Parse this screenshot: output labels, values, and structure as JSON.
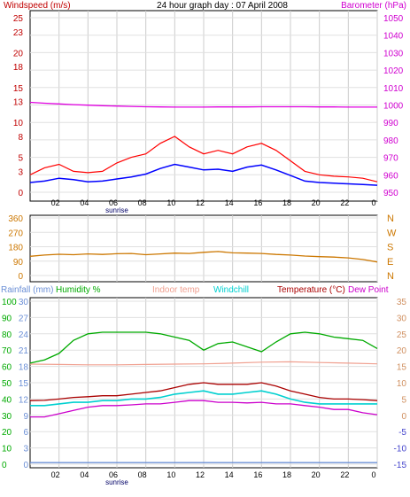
{
  "chart_data": [
    {
      "type": "line",
      "title": "24 hour graph day : 07 April 2008",
      "y_left_label": "Windspeed (m/s)",
      "y_right_label": "Barometer (hPa)",
      "x_ticks": [
        "02",
        "04",
        "06",
        "08",
        "10",
        "12",
        "14",
        "16",
        "18",
        "20",
        "22",
        "0"
      ],
      "sunrise_label": "sunrise",
      "y_left_ticks": [
        0,
        3,
        5,
        8,
        10,
        13,
        15,
        18,
        20,
        23,
        25
      ],
      "y_right_ticks": [
        950,
        960,
        970,
        980,
        990,
        1000,
        1010,
        1020,
        1030,
        1040,
        1050
      ],
      "ylim_left": [
        0,
        25
      ],
      "ylim_right": [
        950,
        1050
      ],
      "colors": {
        "title_left": "#c00000",
        "title_right": "#d000d0",
        "gust": "#ff0000",
        "average": "#0000ff",
        "barometer": "#e000e0"
      },
      "series": [
        {
          "name": "Windspeed (m/s)",
          "axis": "left",
          "color": "#0000ff",
          "x": [
            0,
            1,
            2,
            3,
            4,
            5,
            6,
            7,
            8,
            9,
            10,
            11,
            12,
            13,
            14,
            15,
            16,
            17,
            18,
            19,
            20,
            21,
            22,
            23,
            24
          ],
          "values": [
            1.4,
            1.6,
            2.0,
            1.8,
            1.5,
            1.6,
            1.9,
            2.2,
            2.6,
            3.4,
            4.0,
            3.6,
            3.2,
            3.3,
            3.0,
            3.6,
            3.9,
            3.2,
            2.4,
            1.6,
            1.4,
            1.3,
            1.2,
            1.1,
            1.0
          ]
        },
        {
          "name": "gust",
          "axis": "left",
          "color": "#ff0000",
          "x": [
            0,
            1,
            2,
            3,
            4,
            5,
            6,
            7,
            8,
            9,
            10,
            11,
            12,
            13,
            14,
            15,
            16,
            17,
            18,
            19,
            20,
            21,
            22,
            23,
            24
          ],
          "values": [
            2.5,
            3.5,
            4.0,
            3.0,
            2.8,
            3.0,
            4.2,
            5.0,
            5.5,
            7.0,
            8.0,
            6.5,
            5.5,
            6.0,
            5.5,
            6.5,
            7.0,
            6.0,
            4.5,
            3.0,
            2.5,
            2.3,
            2.2,
            2.0,
            1.5
          ]
        },
        {
          "name": "Barometer (hPa)",
          "axis": "right",
          "color": "#e000e0",
          "x": [
            0,
            1,
            2,
            3,
            4,
            5,
            6,
            7,
            8,
            9,
            10,
            11,
            12,
            13,
            14,
            15,
            16,
            17,
            18,
            19,
            20,
            21,
            22,
            23,
            24
          ],
          "values": [
            1001.5,
            1001.0,
            1000.6,
            1000.2,
            999.9,
            999.6,
            999.4,
            999.2,
            999.0,
            998.9,
            998.8,
            998.8,
            998.8,
            998.9,
            998.9,
            998.9,
            999.0,
            999.0,
            999.0,
            999.0,
            998.9,
            998.9,
            998.8,
            998.8,
            998.8
          ]
        }
      ]
    },
    {
      "type": "line",
      "title": "",
      "y_left_ticks": [
        0,
        90,
        180,
        270,
        360
      ],
      "y_right_ticks": [
        "N",
        "W",
        "S",
        "E",
        "N"
      ],
      "ylim": [
        0,
        360
      ],
      "x_ticks": [
        "02",
        "04",
        "06",
        "08",
        "10",
        "12",
        "14",
        "16",
        "18",
        "20",
        "22",
        "0"
      ],
      "colors": {
        "direction": "#cc7700"
      },
      "series": [
        {
          "name": "Wind direction",
          "color": "#cc7700",
          "x": [
            0,
            1,
            2,
            3,
            4,
            5,
            6,
            7,
            8,
            9,
            10,
            11,
            12,
            13,
            14,
            15,
            16,
            17,
            18,
            19,
            20,
            21,
            22,
            23,
            24
          ],
          "values": [
            120,
            128,
            133,
            130,
            135,
            132,
            136,
            138,
            130,
            135,
            140,
            138,
            145,
            150,
            142,
            140,
            138,
            132,
            128,
            122,
            118,
            115,
            110,
            100,
            85
          ]
        }
      ]
    },
    {
      "type": "line",
      "title": "",
      "legend": [
        "Rainfall (mm)",
        "Humidity %",
        "Indoor temp",
        "Windchill",
        "Temperature (°C)",
        "Dew Point"
      ],
      "colors": {
        "rainfall": "#6b8fd6",
        "humidity": "#00aa00",
        "indoor": "#f0a090",
        "windchill": "#00d0d0",
        "temperature": "#aa0000",
        "dewpoint": "#cc00cc",
        "right_axis": "#d09060",
        "neg_axis": "#4444cc"
      },
      "y_rain_ticks": [
        0,
        3,
        6,
        9,
        12,
        15,
        18,
        21,
        24,
        27,
        30
      ],
      "y_hum_ticks": [
        0,
        10,
        20,
        30,
        40,
        50,
        60,
        70,
        80,
        90,
        100
      ],
      "y_temp_ticks": [
        -15,
        -10,
        -5,
        0,
        5,
        10,
        15,
        20,
        25,
        30,
        35
      ],
      "ylim_temp": [
        -15,
        35
      ],
      "ylim_humidity": [
        0,
        100
      ],
      "ylim_rain": [
        0,
        30
      ],
      "x_ticks": [
        "02",
        "04",
        "06",
        "08",
        "10",
        "12",
        "14",
        "16",
        "18",
        "20",
        "22",
        "0"
      ],
      "sunrise_label": "sunrise",
      "series": [
        {
          "name": "Humidity %",
          "axis": "humidity",
          "color": "#00aa00",
          "x": [
            0,
            1,
            2,
            3,
            4,
            5,
            6,
            7,
            8,
            9,
            10,
            11,
            12,
            13,
            14,
            15,
            16,
            17,
            18,
            19,
            20,
            21,
            22,
            23,
            24
          ],
          "values": [
            62,
            64,
            68,
            76,
            80,
            81,
            81,
            81,
            81,
            80,
            78,
            76,
            70,
            74,
            75,
            72,
            69,
            75,
            80,
            81,
            80,
            78,
            77,
            76,
            71
          ]
        },
        {
          "name": "Indoor temp",
          "axis": "temp",
          "color": "#f0a090",
          "x": [
            0,
            2,
            4,
            6,
            8,
            10,
            12,
            14,
            16,
            18,
            20,
            22,
            24
          ],
          "values": [
            15.7,
            15.6,
            15.5,
            15.5,
            15.6,
            15.7,
            15.8,
            16.0,
            16.3,
            16.4,
            16.2,
            16.0,
            15.8
          ]
        },
        {
          "name": "Windchill",
          "axis": "temp",
          "color": "#00d0d0",
          "x": [
            0,
            1,
            2,
            3,
            4,
            5,
            6,
            7,
            8,
            9,
            10,
            11,
            12,
            13,
            14,
            15,
            16,
            17,
            18,
            19,
            20,
            21,
            22,
            23,
            24
          ],
          "values": [
            3.0,
            3.0,
            3.5,
            4.0,
            4.0,
            4.5,
            4.5,
            5.0,
            5.0,
            5.5,
            6.5,
            7.0,
            7.5,
            6.5,
            6.5,
            7.0,
            7.5,
            6.5,
            5.0,
            4.0,
            3.5,
            3.5,
            3.5,
            3.5,
            3.5
          ]
        },
        {
          "name": "Temperature (°C)",
          "axis": "temp",
          "color": "#aa0000",
          "x": [
            0,
            1,
            2,
            3,
            4,
            5,
            6,
            7,
            8,
            9,
            10,
            11,
            12,
            13,
            14,
            15,
            16,
            17,
            18,
            19,
            20,
            21,
            22,
            23,
            24
          ],
          "values": [
            4.5,
            4.6,
            5.0,
            5.5,
            5.7,
            6.0,
            6.0,
            6.5,
            7.0,
            7.5,
            8.5,
            9.5,
            10.0,
            9.5,
            9.5,
            9.5,
            10.0,
            9.0,
            7.5,
            6.5,
            5.5,
            5.0,
            5.0,
            4.8,
            4.5
          ]
        },
        {
          "name": "Dew Point",
          "axis": "temp",
          "color": "#cc00cc",
          "x": [
            0,
            1,
            2,
            3,
            4,
            5,
            6,
            7,
            8,
            9,
            10,
            11,
            12,
            13,
            14,
            15,
            16,
            17,
            18,
            19,
            20,
            21,
            22,
            23,
            24
          ],
          "values": [
            -0.5,
            -0.5,
            0.5,
            1.5,
            2.5,
            3.0,
            3.0,
            3.2,
            3.5,
            3.5,
            4.0,
            4.5,
            4.5,
            4.0,
            4.0,
            3.8,
            4.0,
            3.5,
            3.5,
            3.0,
            2.5,
            1.8,
            1.8,
            0.8,
            0.2
          ]
        },
        {
          "name": "Rainfall (mm)",
          "axis": "rain",
          "color": "#6b8fd6",
          "x": [
            0,
            24
          ],
          "values": [
            0.3,
            0.3
          ]
        }
      ]
    }
  ]
}
